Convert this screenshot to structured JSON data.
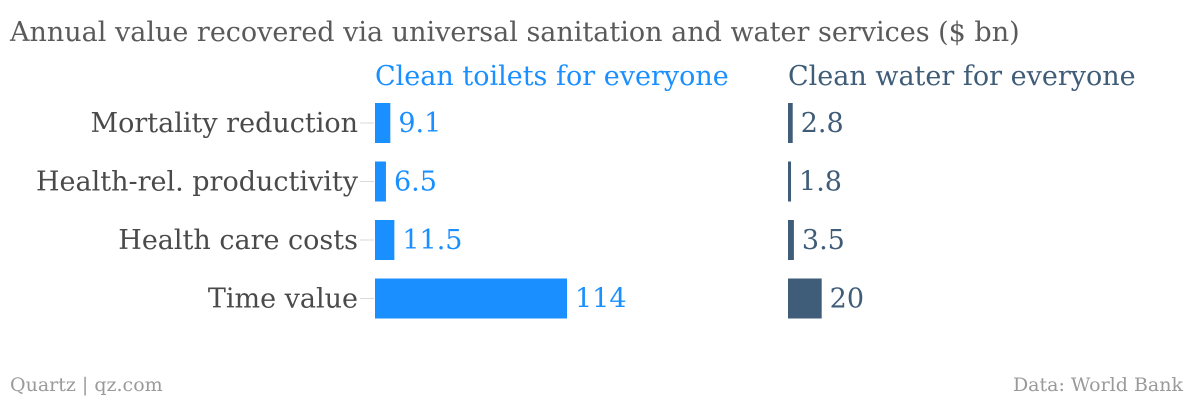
{
  "chart_data": {
    "type": "bar",
    "orientation": "horizontal",
    "title": "Annual value recovered via universal sanitation and water services ($ bn)",
    "categories": [
      "Mortality reduction",
      "Health-rel. productivity",
      "Health care costs",
      "Time value"
    ],
    "series": [
      {
        "name": "Clean toilets for everyone",
        "values": [
          9.1,
          6.5,
          11.5,
          114
        ],
        "labels": [
          "9.1",
          "6.5",
          "11.5",
          "114"
        ],
        "color": "#1a8fff"
      },
      {
        "name": "Clean water for everyone",
        "values": [
          2.8,
          1.8,
          3.5,
          20
        ],
        "labels": [
          "2.8",
          "1.8",
          "3.5",
          "20"
        ],
        "color": "#3f5c78"
      }
    ],
    "xlim": [
      0,
      114
    ],
    "grid": false,
    "legend": "panel headers above each column"
  },
  "footer": {
    "source_left": "Quartz | qz.com",
    "source_right": "Data: World Bank"
  }
}
